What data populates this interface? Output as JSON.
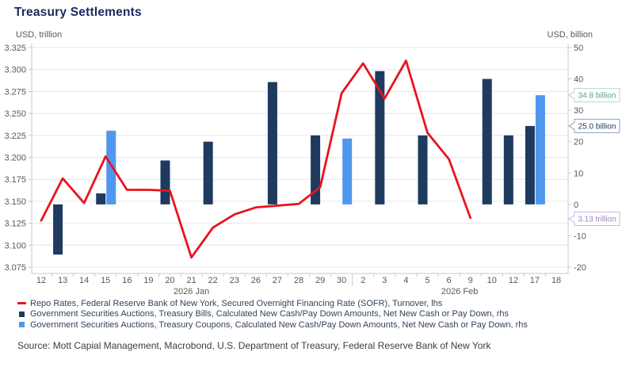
{
  "title": "Treasury Settlements",
  "axes": {
    "left_unit": "USD, trillion",
    "right_unit": "USD, billion",
    "left_ticks": [
      "3.325",
      "3.300",
      "3.275",
      "3.250",
      "3.225",
      "3.200",
      "3.175",
      "3.150",
      "3.125",
      "3.100",
      "3.075"
    ],
    "right_ticks": [
      "50",
      "40",
      "30",
      "20",
      "10",
      "0",
      "-10",
      "-20"
    ],
    "left_range": [
      3.075,
      3.325
    ],
    "right_range": [
      -20,
      50
    ]
  },
  "colors": {
    "grid": "#e6e6e6",
    "axis": "#c9c9c9",
    "title": "#1a2a5c",
    "tick_text": "#595959"
  },
  "chart_data": {
    "type": "combo",
    "categories": [
      "12",
      "13",
      "14",
      "15",
      "16",
      "19",
      "20",
      "21",
      "22",
      "23",
      "26",
      "27",
      "28",
      "29",
      "30",
      "2",
      "3",
      "4",
      "5",
      "6",
      "9",
      "10",
      "12",
      "17",
      "18"
    ],
    "months": [
      {
        "label": "2026 Jan",
        "from_index": 0,
        "to_index": 14
      },
      {
        "label": "2026 Feb",
        "from_index": 15,
        "to_index": 24
      }
    ],
    "month_boundary_after_index": 14,
    "series": [
      {
        "name": "Repo Rates, Federal Reserve Bank of New York, Secured Overnight Financing Rate (SOFR), Turnover, lhs",
        "type": "line",
        "axis": "left",
        "color": "#e8141e",
        "points": [
          [
            0,
            3.128
          ],
          [
            1,
            3.176
          ],
          [
            2,
            3.148
          ],
          [
            3,
            3.201
          ],
          [
            4,
            3.163
          ],
          [
            5,
            3.163
          ],
          [
            6,
            3.162
          ],
          [
            7,
            3.086
          ],
          [
            8,
            3.12
          ],
          [
            9,
            3.135
          ],
          [
            10,
            3.143
          ],
          [
            11,
            3.145
          ],
          [
            12,
            3.147
          ],
          [
            13,
            3.166
          ],
          [
            14,
            3.273
          ],
          [
            15,
            3.307
          ],
          [
            16,
            3.267
          ],
          [
            17,
            3.31
          ],
          [
            18,
            3.228
          ],
          [
            19,
            3.198
          ],
          [
            20,
            3.131
          ]
        ]
      },
      {
        "name": "Government Securities Auctions, Treasury Bills, Calculated New Cash/Pay Down Amounts, Net New Cash or Pay Down, rhs",
        "type": "bar",
        "axis": "right",
        "color": "#1e3a5f",
        "points": [
          [
            1,
            -16
          ],
          [
            3,
            3.5
          ],
          [
            6,
            14
          ],
          [
            8,
            20
          ],
          [
            11,
            39
          ],
          [
            13,
            22
          ],
          [
            16,
            42.5
          ],
          [
            18,
            22
          ],
          [
            21,
            40
          ],
          [
            22,
            22
          ],
          [
            23,
            25.0
          ]
        ]
      },
      {
        "name": "Government Securities Auctions, Treasury Coupons, Calculated New Cash/Pay Down Amounts, Net New Cash or Pay Down, rhs",
        "type": "bar",
        "axis": "right",
        "color": "#4f97ef",
        "points": [
          [
            3,
            23.5
          ],
          [
            14,
            21
          ],
          [
            23,
            34.8
          ]
        ]
      }
    ],
    "callouts": [
      {
        "text": "34.8 billion",
        "axis": "right",
        "value": 34.8,
        "color": "#55a395",
        "border": "#b4d8d0"
      },
      {
        "text": "25.0 billion",
        "axis": "right",
        "value": 25.0,
        "color": "#1d3a5c",
        "border": "#93a1b2"
      },
      {
        "text": "3.13 trillion",
        "axis": "left",
        "value": 3.13,
        "color": "#9d83c8",
        "border": "#c9b9e4"
      }
    ]
  },
  "legend": {
    "items": [
      {
        "marker": "line",
        "color": "#e8141e",
        "label": "Repo Rates, Federal Reserve Bank of New York, Secured Overnight Financing Rate (SOFR), Turnover, lhs"
      },
      {
        "marker": "square",
        "color": "#1e3a5f",
        "label": "Government Securities Auctions, Treasury Bills, Calculated New Cash/Pay Down Amounts, Net New Cash or Pay Down, rhs"
      },
      {
        "marker": "square",
        "color": "#4f97ef",
        "label": "Government Securities Auctions, Treasury Coupons, Calculated New Cash/Pay Down Amounts, Net New Cash or Pay Down, rhs"
      }
    ]
  },
  "source": "Source: Mott Capial Management, Macrobond, U.S. Department of Treasury, Federal Reserve Bank of New York"
}
